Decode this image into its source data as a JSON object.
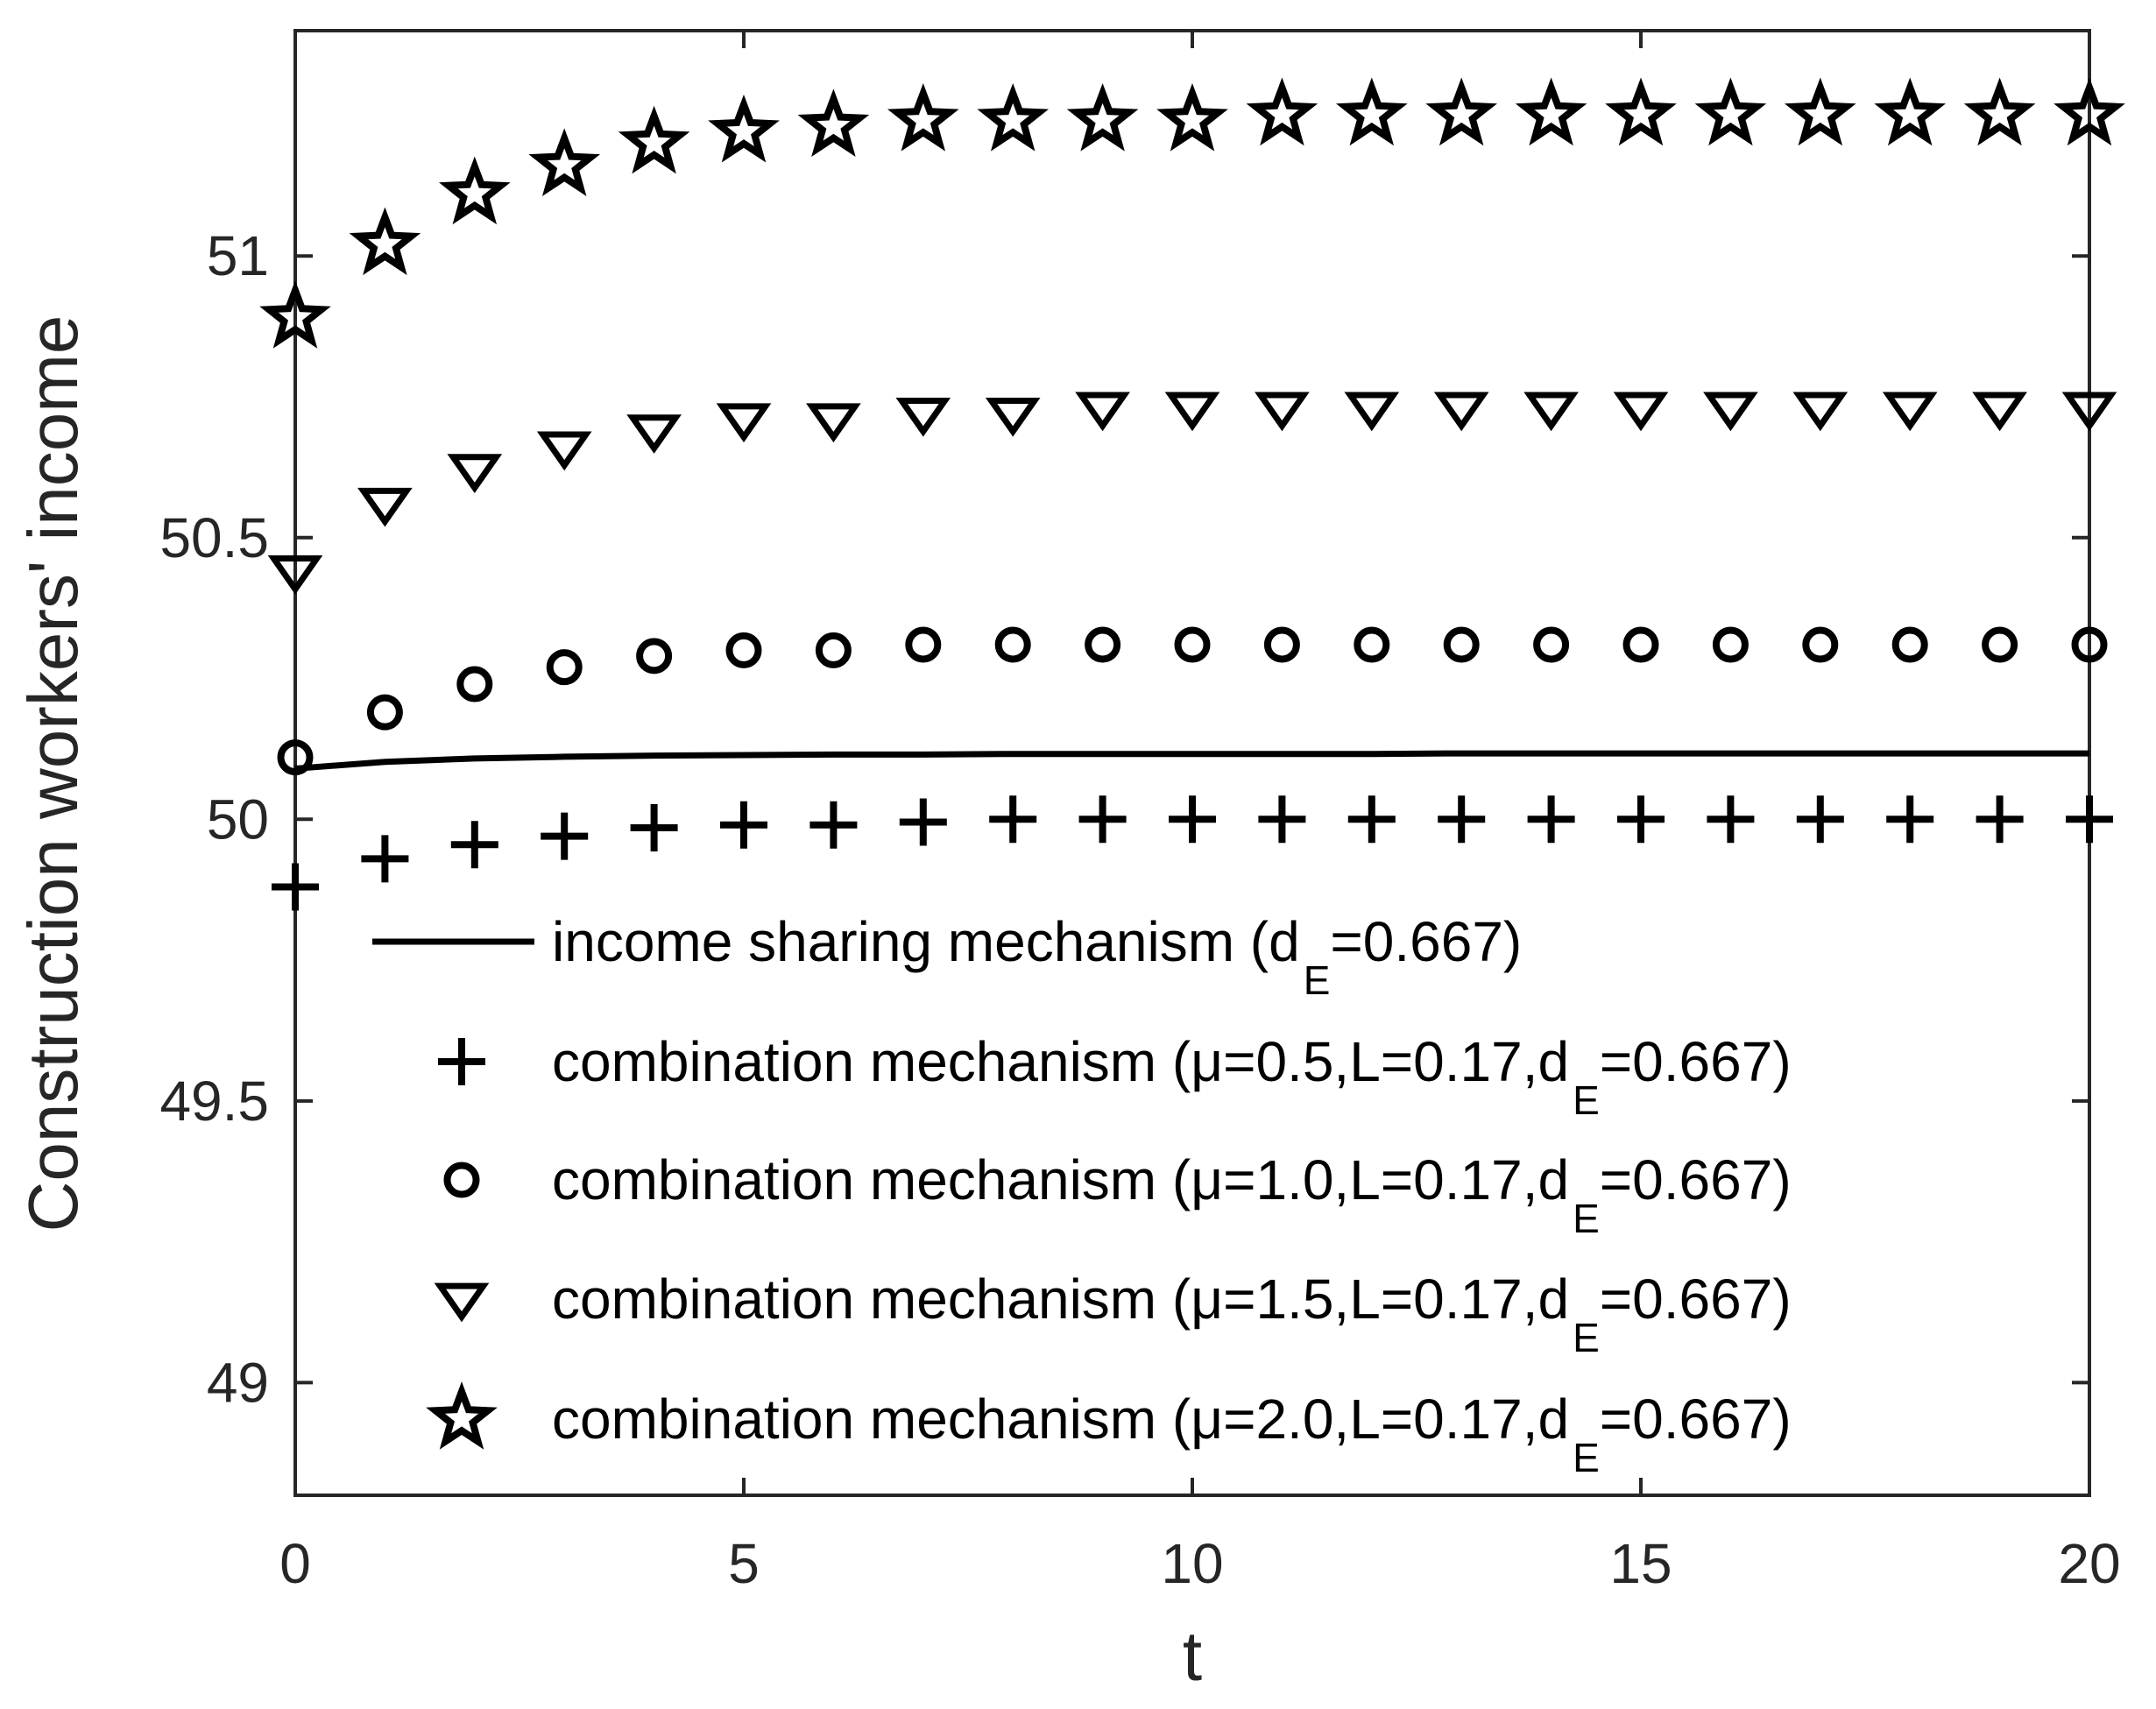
{
  "chart_data": {
    "type": "scatter",
    "title": "",
    "xlabel": "t",
    "ylabel": "Construction workers' income",
    "xlim": [
      0,
      20
    ],
    "ylim": [
      48.8,
      51.4
    ],
    "xticks": [
      0,
      5,
      10,
      15,
      20
    ],
    "xtick_labels": [
      "0",
      "5",
      "10",
      "15",
      "20"
    ],
    "yticks": [
      49,
      49.5,
      50,
      50.5,
      51
    ],
    "ytick_labels": [
      "49",
      "49.5",
      "50",
      "50.5",
      "51"
    ],
    "grid": false,
    "legend_position": "bottom-right",
    "x": [
      0,
      1,
      2,
      3,
      4,
      5,
      6,
      7,
      8,
      9,
      10,
      11,
      12,
      13,
      14,
      15,
      16,
      17,
      18,
      19,
      20
    ],
    "series": [
      {
        "name": "income sharing mechanism (d",
        "name_sub": "E",
        "name_tail": "=0.667)",
        "marker": "line",
        "values": [
          50.09,
          50.102,
          50.108,
          50.111,
          50.113,
          50.114,
          50.115,
          50.115,
          50.116,
          50.116,
          50.116,
          50.116,
          50.116,
          50.117,
          50.117,
          50.117,
          50.117,
          50.117,
          50.117,
          50.117,
          50.117
        ]
      },
      {
        "name": "combination mechanism (μ=0.5,L=0.17,d",
        "name_sub": "E",
        "name_tail": "=0.667)",
        "marker": "plus",
        "values": [
          49.88,
          49.93,
          49.955,
          49.97,
          49.985,
          49.99,
          49.99,
          49.995,
          50.0,
          50.0,
          50.0,
          50.0,
          50.0,
          50.0,
          50.0,
          50.0,
          50.0,
          50.0,
          50.0,
          50.0,
          50.0
        ]
      },
      {
        "name": "combination mechanism (μ=1.0,L=0.17,d",
        "name_sub": "E",
        "name_tail": "=0.667)",
        "marker": "circle",
        "values": [
          50.11,
          50.19,
          50.24,
          50.27,
          50.29,
          50.3,
          50.3,
          50.31,
          50.31,
          50.31,
          50.31,
          50.31,
          50.31,
          50.31,
          50.31,
          50.31,
          50.31,
          50.31,
          50.31,
          50.31,
          50.31
        ]
      },
      {
        "name": "combination mechanism (μ=1.5,L=0.17,d",
        "name_sub": "E",
        "name_tail": "=0.667)",
        "marker": "triangle-down",
        "values": [
          50.44,
          50.56,
          50.62,
          50.66,
          50.69,
          50.71,
          50.71,
          50.72,
          50.72,
          50.73,
          50.73,
          50.73,
          50.73,
          50.73,
          50.73,
          50.73,
          50.73,
          50.73,
          50.73,
          50.73,
          50.73
        ]
      },
      {
        "name": "combination mechanism (μ=2.0,L=0.17,d",
        "name_sub": "E",
        "name_tail": "=0.667)",
        "marker": "star",
        "values": [
          50.89,
          51.02,
          51.11,
          51.16,
          51.2,
          51.22,
          51.23,
          51.24,
          51.24,
          51.24,
          51.24,
          51.25,
          51.25,
          51.25,
          51.25,
          51.25,
          51.25,
          51.25,
          51.25,
          51.25,
          51.25
        ]
      }
    ]
  }
}
